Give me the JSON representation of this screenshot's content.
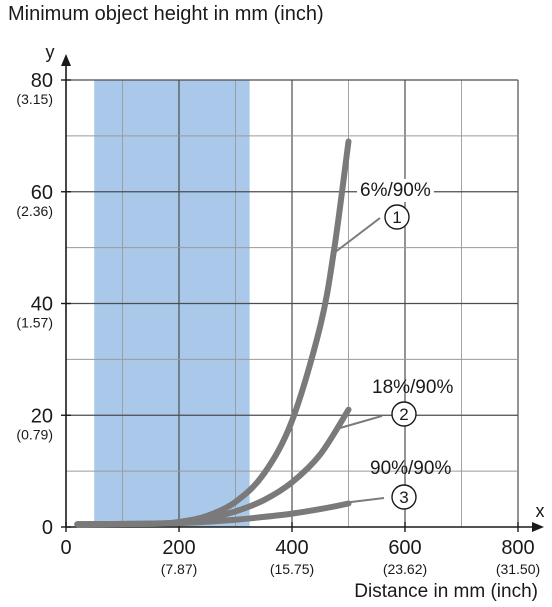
{
  "chart_data": {
    "type": "line",
    "title": "Minimum object height in mm (inch)",
    "xlabel": "Distance in mm (inch)",
    "ylabel": "y",
    "x_axis_name": "x",
    "xlim": [
      0,
      800
    ],
    "ylim": [
      0,
      80
    ],
    "grid": true,
    "x_ticks": [
      {
        "value": 0,
        "label": "0",
        "sub": ""
      },
      {
        "value": 200,
        "label": "200",
        "sub": "(7.87)"
      },
      {
        "value": 400,
        "label": "400",
        "sub": "(15.75)"
      },
      {
        "value": 600,
        "label": "600",
        "sub": "(23.62)"
      },
      {
        "value": 800,
        "label": "800",
        "sub": "(31.50)"
      }
    ],
    "y_ticks": [
      {
        "value": 0,
        "label": "0",
        "sub": ""
      },
      {
        "value": 20,
        "label": "20",
        "sub": "(0.79)"
      },
      {
        "value": 40,
        "label": "40",
        "sub": "(1.57)"
      },
      {
        "value": 60,
        "label": "60",
        "sub": "(2.36)"
      },
      {
        "value": 80,
        "label": "80",
        "sub": "(3.15)"
      }
    ],
    "shaded_region": {
      "x_from": 50,
      "x_to": 325,
      "color": "#a9c8ea"
    },
    "series_color": "#7a7a7a",
    "series": [
      {
        "name": "6%/90%",
        "marker": "1",
        "x": [
          20,
          150,
          200,
          250,
          300,
          350,
          400,
          450,
          475,
          500
        ],
        "y": [
          0.5,
          0.6,
          0.9,
          2,
          4.5,
          9.5,
          19,
          36,
          50,
          69
        ]
      },
      {
        "name": "18%/90%",
        "marker": "2",
        "x": [
          20,
          150,
          200,
          250,
          300,
          350,
          400,
          450,
          500
        ],
        "y": [
          0.5,
          0.6,
          0.8,
          1.5,
          2.8,
          4.8,
          8,
          13,
          21
        ]
      },
      {
        "name": "90%/90%",
        "marker": "3",
        "x": [
          20,
          150,
          200,
          250,
          300,
          350,
          400,
          450,
          500
        ],
        "y": [
          0.5,
          0.55,
          0.7,
          0.95,
          1.3,
          1.8,
          2.4,
          3.2,
          4.2
        ]
      }
    ]
  }
}
